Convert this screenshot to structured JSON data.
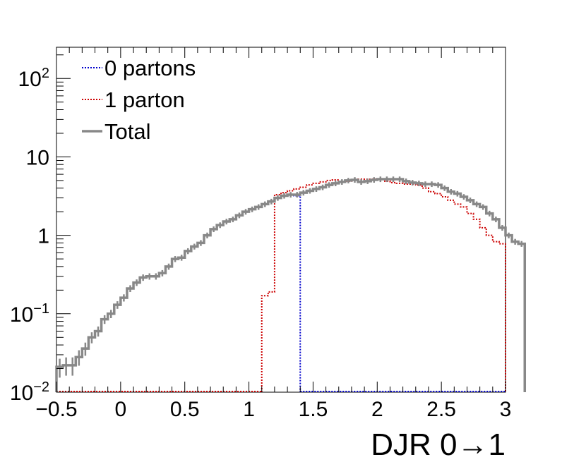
{
  "chart_data": {
    "type": "histogram-step",
    "xlabel": "DJR 0→1",
    "ylabel": "",
    "xlim": [
      -0.5,
      3.0
    ],
    "ylim": [
      0.01,
      250
    ],
    "y_log_scale": true,
    "grid": false,
    "legend_position": "top-left",
    "x_ticks": [
      {
        "value": -0.5,
        "label": "−0.5"
      },
      {
        "value": 0,
        "label": "0"
      },
      {
        "value": 0.5,
        "label": "0.5"
      },
      {
        "value": 1,
        "label": "1"
      },
      {
        "value": 1.5,
        "label": "1.5"
      },
      {
        "value": 2,
        "label": "2"
      },
      {
        "value": 2.5,
        "label": "2.5"
      },
      {
        "value": 3,
        "label": "3"
      }
    ],
    "y_ticks": [
      {
        "value": 0.01,
        "base": "10",
        "exp": "−2"
      },
      {
        "value": 0.1,
        "base": "10",
        "exp": "−1"
      },
      {
        "value": 1,
        "base": "1",
        "exp": ""
      },
      {
        "value": 10,
        "base": "10",
        "exp": ""
      },
      {
        "value": 100,
        "base": "10",
        "exp": "2"
      }
    ],
    "bin_width": 0.05,
    "x_start": -0.5,
    "series": [
      {
        "name": "0 partons",
        "color": "#0000cc",
        "style": "dotted",
        "values": [
          0.021,
          0.022,
          0.022,
          0.028,
          0.036,
          0.05,
          0.06,
          0.085,
          0.1,
          0.13,
          0.16,
          0.21,
          0.25,
          0.29,
          0.3,
          0.3,
          0.33,
          0.4,
          0.5,
          0.52,
          0.63,
          0.72,
          0.8,
          1.0,
          1.2,
          1.35,
          1.5,
          1.6,
          1.8,
          2.0,
          2.15,
          2.3,
          2.5,
          2.7,
          3.0,
          3.2,
          3.3,
          3.2
        ]
      },
      {
        "name": "1 parton",
        "color": "#cc0000",
        "style": "dotted",
        "values_from_x": 1.1,
        "values": [
          0.17,
          0.19,
          3.3,
          3.5,
          3.7,
          3.9,
          4.1,
          4.4,
          4.6,
          4.8,
          5.0,
          5.1,
          4.8,
          4.9,
          5.1,
          5.2,
          5.2,
          5.2,
          5.2,
          4.9,
          4.7,
          4.6,
          4.5,
          4.5,
          4.4,
          4.0,
          3.6,
          3.4,
          3.1,
          2.8,
          2.5,
          2.3,
          1.9,
          1.6,
          1.25,
          1.0,
          0.83,
          0.78
        ]
      },
      {
        "name": "Total",
        "color": "#888888",
        "style": "solid",
        "values": [
          0.021,
          0.022,
          0.022,
          0.028,
          0.036,
          0.05,
          0.06,
          0.085,
          0.1,
          0.13,
          0.16,
          0.21,
          0.25,
          0.29,
          0.3,
          0.3,
          0.33,
          0.4,
          0.5,
          0.52,
          0.63,
          0.72,
          0.8,
          1.0,
          1.2,
          1.35,
          1.5,
          1.6,
          1.8,
          2.0,
          2.15,
          2.3,
          2.5,
          2.7,
          3.0,
          3.2,
          3.3,
          3.3,
          3.5,
          3.7,
          3.9,
          4.1,
          4.4,
          4.6,
          4.8,
          5.0,
          5.1,
          4.8,
          4.9,
          5.1,
          5.2,
          5.2,
          5.2,
          5.2,
          4.9,
          4.7,
          4.6,
          4.5,
          4.5,
          4.4,
          4.0,
          3.6,
          3.4,
          3.1,
          2.8,
          2.5,
          2.3,
          1.9,
          1.6,
          1.25,
          1.0,
          0.83,
          0.78
        ]
      }
    ],
    "legend": [
      {
        "label": "0 partons",
        "color": "#0000cc",
        "style": "dotted"
      },
      {
        "label": "1 parton",
        "color": "#cc0000",
        "style": "dotted"
      },
      {
        "label": "Total",
        "color": "#888888",
        "style": "solid"
      }
    ]
  }
}
